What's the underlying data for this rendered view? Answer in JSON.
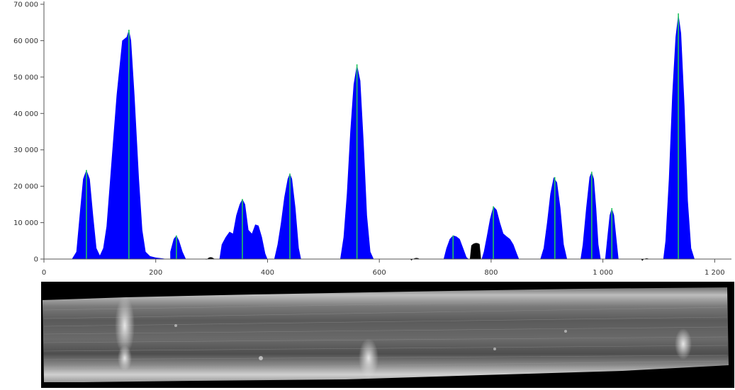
{
  "colors": {
    "fill": "#0000ff",
    "peak_marker": "#22c55e",
    "baseline_blob": "#000000",
    "axis": "#555555",
    "background": "#ffffff"
  },
  "chart_data": {
    "type": "area",
    "title": "",
    "xlabel": "",
    "ylabel": "",
    "xlim": [
      0,
      1230
    ],
    "ylim": [
      0,
      70000
    ],
    "x_ticks": [
      0,
      200,
      400,
      600,
      800,
      1000,
      1200
    ],
    "x_tick_labels": [
      "0",
      "200",
      "400",
      "600",
      "800",
      "1 000",
      "1 200"
    ],
    "y_ticks": [
      0,
      10000,
      20000,
      30000,
      40000,
      50000,
      60000,
      70000
    ],
    "y_tick_labels": [
      "0",
      "10 000",
      "20 000",
      "30 000",
      "40 000",
      "50 000",
      "60 000",
      "70 000"
    ],
    "grid": false,
    "series": [
      {
        "points": [
          [
            50,
            0
          ],
          [
            58,
            2000
          ],
          [
            65,
            14000
          ],
          [
            70,
            22000
          ],
          [
            76,
            24500
          ],
          [
            82,
            22000
          ],
          [
            88,
            12000
          ],
          [
            94,
            3000
          ],
          [
            100,
            1000
          ],
          [
            106,
            3000
          ],
          [
            112,
            9000
          ],
          [
            120,
            25000
          ],
          [
            130,
            45000
          ],
          [
            140,
            60000
          ],
          [
            148,
            61000
          ],
          [
            152,
            63000
          ],
          [
            156,
            60000
          ],
          [
            162,
            45000
          ],
          [
            170,
            22000
          ],
          [
            176,
            8000
          ],
          [
            182,
            2000
          ],
          [
            190,
            800
          ],
          [
            200,
            400
          ],
          [
            212,
            200
          ],
          [
            220,
            0
          ],
          [
            226,
            2000
          ],
          [
            232,
            5500
          ],
          [
            237,
            6500
          ],
          [
            242,
            5000
          ],
          [
            248,
            2000
          ],
          [
            254,
            0
          ],
          [
            314,
            0
          ],
          [
            318,
            4000
          ],
          [
            325,
            6000
          ],
          [
            332,
            7500
          ],
          [
            338,
            7000
          ],
          [
            344,
            12000
          ],
          [
            350,
            15000
          ],
          [
            355,
            16500
          ],
          [
            360,
            15000
          ],
          [
            366,
            8000
          ],
          [
            372,
            7000
          ],
          [
            378,
            9500
          ],
          [
            384,
            9200
          ],
          [
            390,
            6000
          ],
          [
            396,
            1500
          ],
          [
            400,
            0
          ],
          [
            412,
            0
          ],
          [
            418,
            4000
          ],
          [
            424,
            10000
          ],
          [
            430,
            17000
          ],
          [
            436,
            22000
          ],
          [
            440,
            23500
          ],
          [
            444,
            22000
          ],
          [
            450,
            14000
          ],
          [
            456,
            3000
          ],
          [
            460,
            0
          ],
          [
            530,
            0
          ],
          [
            536,
            6000
          ],
          [
            542,
            18000
          ],
          [
            548,
            35000
          ],
          [
            554,
            48000
          ],
          [
            560,
            53500
          ],
          [
            566,
            49000
          ],
          [
            572,
            32000
          ],
          [
            578,
            12000
          ],
          [
            584,
            2000
          ],
          [
            590,
            0
          ],
          [
            715,
            0
          ],
          [
            720,
            3000
          ],
          [
            726,
            5500
          ],
          [
            732,
            6500
          ],
          [
            738,
            6200
          ],
          [
            744,
            5500
          ],
          [
            750,
            3000
          ],
          [
            756,
            500
          ],
          [
            760,
            0
          ],
          [
            783,
            0
          ],
          [
            787,
            2000
          ],
          [
            792,
            6000
          ],
          [
            798,
            11000
          ],
          [
            804,
            14500
          ],
          [
            810,
            13500
          ],
          [
            816,
            10000
          ],
          [
            822,
            7000
          ],
          [
            828,
            6200
          ],
          [
            834,
            5500
          ],
          [
            840,
            4000
          ],
          [
            846,
            1500
          ],
          [
            850,
            0
          ],
          [
            888,
            0
          ],
          [
            894,
            3000
          ],
          [
            900,
            10000
          ],
          [
            906,
            18000
          ],
          [
            912,
            22500
          ],
          [
            918,
            21000
          ],
          [
            924,
            14000
          ],
          [
            930,
            4000
          ],
          [
            936,
            0
          ],
          [
            960,
            0
          ],
          [
            964,
            4000
          ],
          [
            970,
            14000
          ],
          [
            976,
            22500
          ],
          [
            980,
            24000
          ],
          [
            984,
            22000
          ],
          [
            988,
            14000
          ],
          [
            992,
            4000
          ],
          [
            996,
            0
          ],
          [
            1004,
            0
          ],
          [
            1008,
            6000
          ],
          [
            1012,
            12000
          ],
          [
            1016,
            14000
          ],
          [
            1020,
            12000
          ],
          [
            1024,
            6000
          ],
          [
            1028,
            0
          ],
          [
            1108,
            0
          ],
          [
            1112,
            5000
          ],
          [
            1118,
            22000
          ],
          [
            1124,
            45000
          ],
          [
            1130,
            61000
          ],
          [
            1135,
            67500
          ],
          [
            1140,
            62000
          ],
          [
            1146,
            42000
          ],
          [
            1152,
            16000
          ],
          [
            1158,
            3000
          ],
          [
            1164,
            0
          ]
        ]
      }
    ],
    "peak_markers": [
      [
        76,
        24500
      ],
      [
        152,
        63000
      ],
      [
        237,
        6500
      ],
      [
        355,
        16500
      ],
      [
        440,
        23500
      ],
      [
        560,
        53500
      ],
      [
        732,
        6500
      ],
      [
        804,
        14500
      ],
      [
        914,
        22500
      ],
      [
        980,
        24000
      ],
      [
        1016,
        14000
      ],
      [
        1135,
        67500
      ]
    ],
    "baseline_blobs": [
      {
        "x_start": 288,
        "x_end": 306,
        "height": 600
      },
      {
        "x_start": 655,
        "x_end": 675,
        "height": 400
      },
      {
        "x_start": 762,
        "x_end": 782,
        "height": 4500
      },
      {
        "x_start": 1068,
        "x_end": 1086,
        "height": 300
      }
    ]
  }
}
